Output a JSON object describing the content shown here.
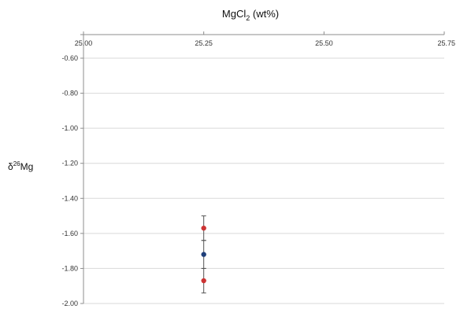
{
  "chart_data": {
    "type": "scatter",
    "title": "MgCl",
    "title_subscript": "2",
    "title_suffix": " (wt%)",
    "ylabel": "δ",
    "ylabel_superscript": "26",
    "ylabel_suffix": "Mg",
    "x_axis_position": "top",
    "xlim": [
      25.0,
      25.75
    ],
    "ylim": [
      -2.0,
      -0.6
    ],
    "x_ticks": [
      "25.00",
      "25.25",
      "25.50",
      "25.75"
    ],
    "y_ticks": [
      "-0.60",
      "-0.80",
      "-1.00",
      "-1.20",
      "-1.40",
      "-1.60",
      "-1.80",
      "-2.00"
    ],
    "x_tick_values": [
      25.0,
      25.25,
      25.5,
      25.75
    ],
    "y_tick_values": [
      -0.6,
      -0.8,
      -1.0,
      -1.2,
      -1.4,
      -1.6,
      -1.8,
      -2.0
    ],
    "grid": true,
    "series": [
      {
        "color": "#cc3333",
        "points": [
          {
            "x": 25.25,
            "y": -1.57,
            "err": 0.07
          }
        ]
      },
      {
        "color": "#1f3f7a",
        "points": [
          {
            "x": 25.25,
            "y": -1.72,
            "err": 0.08
          }
        ]
      },
      {
        "color": "#cc3333",
        "points": [
          {
            "x": 25.25,
            "y": -1.87,
            "err": 0.07
          }
        ]
      }
    ]
  }
}
